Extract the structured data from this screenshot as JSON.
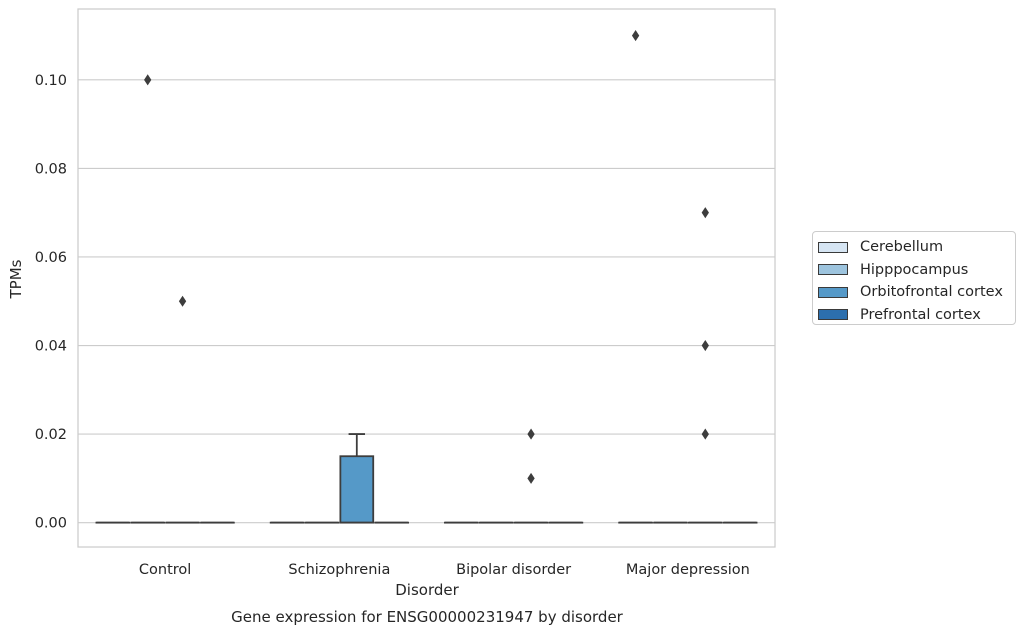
{
  "chart_data": {
    "type": "box",
    "caption": "Gene expression for ENSG00000231947 by disorder",
    "xlabel": "Disorder",
    "ylabel": "TPMs",
    "ylim": [
      -0.0055,
      0.116
    ],
    "yticks": [
      0.0,
      0.02,
      0.04,
      0.06,
      0.08,
      0.1
    ],
    "ytick_labels": [
      "0.00",
      "0.02",
      "0.04",
      "0.06",
      "0.08",
      "0.10"
    ],
    "categories": [
      "Control",
      "Schizophrenia",
      "Bipolar disorder",
      "Major depression"
    ],
    "grid": "horizontal",
    "legend_position": "right",
    "series": [
      {
        "name": "Cerebellum",
        "color": "#d6e5f3",
        "boxes": [
          {
            "q1": 0,
            "median": 0,
            "q3": 0,
            "whisker_low": 0,
            "whisker_high": 0,
            "outliers": []
          },
          {
            "q1": 0,
            "median": 0,
            "q3": 0,
            "whisker_low": 0,
            "whisker_high": 0,
            "outliers": []
          },
          {
            "q1": 0,
            "median": 0,
            "q3": 0,
            "whisker_low": 0,
            "whisker_high": 0,
            "outliers": []
          },
          {
            "q1": 0,
            "median": 0,
            "q3": 0,
            "whisker_low": 0,
            "whisker_high": 0,
            "outliers": [
              0.11
            ]
          }
        ]
      },
      {
        "name": "Hipppocampus",
        "color": "#9dc4de",
        "boxes": [
          {
            "q1": 0,
            "median": 0,
            "q3": 0,
            "whisker_low": 0,
            "whisker_high": 0,
            "outliers": [
              0.1
            ]
          },
          {
            "q1": 0,
            "median": 0,
            "q3": 0,
            "whisker_low": 0,
            "whisker_high": 0,
            "outliers": []
          },
          {
            "q1": 0,
            "median": 0,
            "q3": 0,
            "whisker_low": 0,
            "whisker_high": 0,
            "outliers": []
          },
          {
            "q1": 0,
            "median": 0,
            "q3": 0,
            "whisker_low": 0,
            "whisker_high": 0,
            "outliers": []
          }
        ]
      },
      {
        "name": "Orbitofrontal cortex",
        "color": "#5599c8",
        "boxes": [
          {
            "q1": 0,
            "median": 0,
            "q3": 0,
            "whisker_low": 0,
            "whisker_high": 0,
            "outliers": [
              0.05
            ]
          },
          {
            "q1": 0,
            "median": 0,
            "q3": 0.015,
            "whisker_low": 0,
            "whisker_high": 0.02,
            "outliers": []
          },
          {
            "q1": 0,
            "median": 0,
            "q3": 0,
            "whisker_low": 0,
            "whisker_high": 0,
            "outliers": [
              0.02,
              0.01
            ]
          },
          {
            "q1": 0,
            "median": 0,
            "q3": 0,
            "whisker_low": 0,
            "whisker_high": 0,
            "outliers": [
              0.07,
              0.04,
              0.02
            ]
          }
        ]
      },
      {
        "name": "Prefrontal cortex",
        "color": "#2c6fae",
        "boxes": [
          {
            "q1": 0,
            "median": 0,
            "q3": 0,
            "whisker_low": 0,
            "whisker_high": 0,
            "outliers": []
          },
          {
            "q1": 0,
            "median": 0,
            "q3": 0,
            "whisker_low": 0,
            "whisker_high": 0,
            "outliers": []
          },
          {
            "q1": 0,
            "median": 0,
            "q3": 0,
            "whisker_low": 0,
            "whisker_high": 0,
            "outliers": []
          },
          {
            "q1": 0,
            "median": 0,
            "q3": 0,
            "whisker_low": 0,
            "whisker_high": 0,
            "outliers": []
          }
        ]
      }
    ]
  },
  "colors": {
    "grid": "#cccccc",
    "spine": "#cccccc",
    "box_edge": "#3d3d3d",
    "text": "#262626"
  }
}
